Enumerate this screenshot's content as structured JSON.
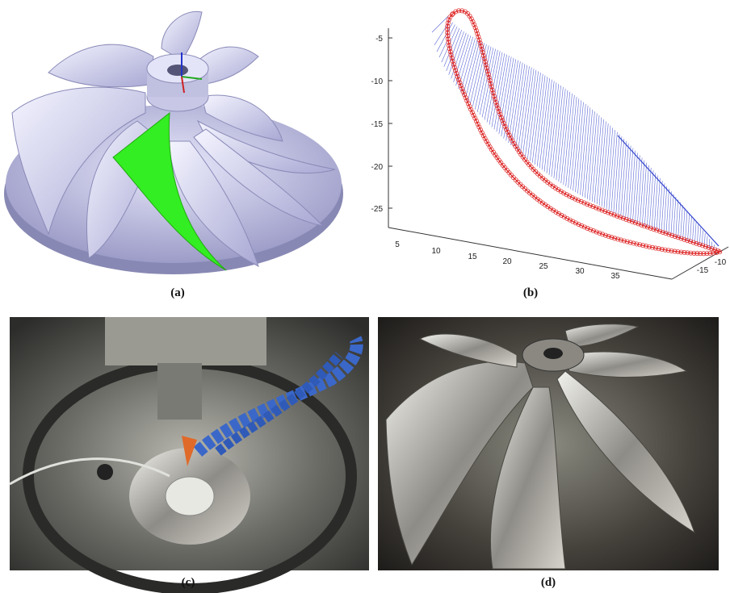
{
  "panels": [
    {
      "label": "(a)"
    },
    {
      "label": "(b)",
      "z_ticks": [
        -5,
        -10,
        -15,
        -20,
        -25
      ],
      "x_ticks": [
        5,
        10,
        15,
        20,
        25,
        30,
        35
      ],
      "y_ticks": [
        -15,
        -10
      ]
    },
    {
      "label": "(c)"
    },
    {
      "label": "(d)"
    }
  ]
}
